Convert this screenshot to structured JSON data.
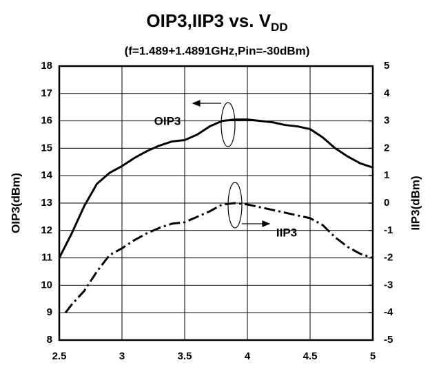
{
  "chart_data": {
    "type": "line",
    "title": "OIP3,IIP3 vs. V",
    "title_subscript": "DD",
    "subtitle": "(f=1.489+1.4891GHz,Pin=-30dBm)",
    "y_label": "OIP3(dBm)",
    "y2_label": "IIP3(dBm)",
    "annotations": [
      "OIP3",
      "IIP3"
    ],
    "xlim": [
      2.5,
      5
    ],
    "xticks": [
      2.5,
      3,
      3.5,
      4,
      4.5,
      5
    ],
    "ylim": [
      8,
      18
    ],
    "yticks": [
      8,
      9,
      10,
      11,
      12,
      13,
      14,
      15,
      16,
      17,
      18
    ],
    "y2lim": [
      -5,
      5
    ],
    "y2ticks": [
      -5,
      -4,
      -3,
      -2,
      -1,
      0,
      1,
      2,
      3,
      4,
      5
    ],
    "grid": true,
    "series": [
      {
        "name": "OIP3",
        "color": "#000000",
        "line_style": "solid",
        "x": [
          2.5,
          2.6,
          2.7,
          2.8,
          2.9,
          3.0,
          3.1,
          3.2,
          3.3,
          3.4,
          3.5,
          3.6,
          3.7,
          3.8,
          3.9,
          4.0,
          4.1,
          4.2,
          4.3,
          4.4,
          4.5,
          4.6,
          4.7,
          4.8,
          4.9,
          5.0
        ],
        "values": [
          11.0,
          11.9,
          12.9,
          13.7,
          14.1,
          14.35,
          14.65,
          14.9,
          15.1,
          15.25,
          15.3,
          15.5,
          15.8,
          16.0,
          16.05,
          16.05,
          16.0,
          15.95,
          15.85,
          15.8,
          15.7,
          15.4,
          15.0,
          14.7,
          14.45,
          14.3
        ]
      },
      {
        "name": "IIP3",
        "color": "#000000",
        "line_style": "dashdot",
        "axis": "y2",
        "x": [
          2.55,
          2.6,
          2.7,
          2.8,
          2.9,
          3.0,
          3.1,
          3.2,
          3.3,
          3.4,
          3.5,
          3.6,
          3.7,
          3.8,
          3.9,
          4.0,
          4.1,
          4.2,
          4.3,
          4.4,
          4.5,
          4.6,
          4.7,
          4.8,
          4.9,
          5.0
        ],
        "values": [
          -4.0,
          -3.7,
          -3.2,
          -2.5,
          -1.9,
          -1.65,
          -1.35,
          -1.1,
          -0.9,
          -0.75,
          -0.7,
          -0.5,
          -0.3,
          -0.05,
          0.0,
          -0.05,
          -0.15,
          -0.25,
          -0.35,
          -0.45,
          -0.55,
          -0.8,
          -1.25,
          -1.6,
          -1.85,
          -2.0
        ]
      }
    ]
  }
}
